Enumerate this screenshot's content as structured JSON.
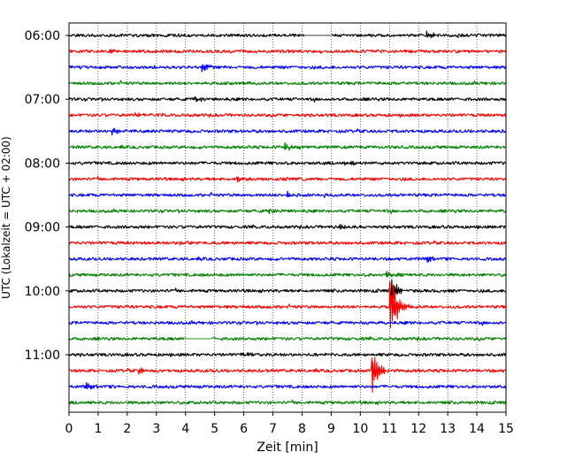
{
  "chart_data": {
    "type": "line",
    "title": "",
    "xlabel": "Zeit  [min]",
    "ylabel": "UTC (Lokalzeit = UTC + 02:00)",
    "xlim": [
      0,
      15
    ],
    "x_ticks": [
      0,
      1,
      2,
      3,
      4,
      5,
      6,
      7,
      8,
      9,
      10,
      11,
      12,
      13,
      14,
      15
    ],
    "x_tick_labels": [
      "0",
      "1",
      "2",
      "3",
      "4",
      "5",
      "6",
      "7",
      "8",
      "9",
      "10",
      "11",
      "12",
      "13",
      "14",
      "15"
    ],
    "y_tick_labels": [
      "06:00",
      "07:00",
      "08:00",
      "09:00",
      "10:00",
      "11:00"
    ],
    "y_tick_times": [
      "06:00",
      "07:00",
      "08:00",
      "09:00",
      "10:00",
      "11:00"
    ],
    "grid": "vertical dotted",
    "trace_interval_minutes": 15,
    "color_cycle": [
      "#000000",
      "#ff0000",
      "#0000ff",
      "#008000"
    ],
    "traces": [
      {
        "start": "06:00",
        "color": "#000000",
        "gap": [
          8.1,
          9.0
        ],
        "events": [
          {
            "minute": 12.3,
            "amplitude": 0.1
          }
        ]
      },
      {
        "start": "06:15",
        "color": "#ff0000",
        "events": [
          {
            "minute": 1.4,
            "amplitude": 0.1
          }
        ]
      },
      {
        "start": "06:30",
        "color": "#0000ff",
        "events": [
          {
            "minute": 4.6,
            "amplitude": 0.1
          }
        ]
      },
      {
        "start": "06:45",
        "color": "#008000",
        "events": []
      },
      {
        "start": "07:00",
        "color": "#000000",
        "events": [
          {
            "minute": 4.3,
            "amplitude": 0.09
          }
        ]
      },
      {
        "start": "07:15",
        "color": "#ff0000",
        "events": [
          {
            "minute": 2.3,
            "amplitude": 0.09
          }
        ]
      },
      {
        "start": "07:30",
        "color": "#0000ff",
        "events": [
          {
            "minute": 1.5,
            "amplitude": 0.1
          }
        ]
      },
      {
        "start": "07:45",
        "color": "#008000",
        "events": [
          {
            "minute": 7.4,
            "amplitude": 0.1
          }
        ]
      },
      {
        "start": "08:00",
        "color": "#000000",
        "events": [
          {
            "minute": 9.5,
            "amplitude": 0.1
          }
        ]
      },
      {
        "start": "08:15",
        "color": "#ff0000",
        "events": [
          {
            "minute": 5.8,
            "amplitude": 0.1
          }
        ]
      },
      {
        "start": "08:30",
        "color": "#0000ff",
        "events": [
          {
            "minute": 7.5,
            "amplitude": 0.1
          }
        ]
      },
      {
        "start": "08:45",
        "color": "#008000",
        "events": [
          {
            "minute": 6.8,
            "amplitude": 0.09
          }
        ]
      },
      {
        "start": "09:00",
        "color": "#000000",
        "events": [
          {
            "minute": 9.3,
            "amplitude": 0.08
          }
        ]
      },
      {
        "start": "09:15",
        "color": "#ff0000",
        "events": [
          {
            "minute": 3.8,
            "amplitude": 0.08
          }
        ]
      },
      {
        "start": "09:30",
        "color": "#0000ff",
        "events": [
          {
            "minute": 12.3,
            "amplitude": 0.1
          }
        ]
      },
      {
        "start": "09:45",
        "color": "#008000",
        "events": [
          {
            "minute": 10.9,
            "amplitude": 0.1
          }
        ]
      },
      {
        "start": "10:00",
        "color": "#000000",
        "events": [
          {
            "minute": 11.05,
            "amplitude": 0.45
          }
        ]
      },
      {
        "start": "10:15",
        "color": "#ff0000",
        "events": [
          {
            "minute": 11.05,
            "amplitude": 1.0
          }
        ]
      },
      {
        "start": "10:30",
        "color": "#0000ff",
        "events": []
      },
      {
        "start": "10:45",
        "color": "#008000",
        "gap": [
          4.0,
          4.9
        ],
        "events": []
      },
      {
        "start": "11:00",
        "color": "#000000",
        "events": [
          {
            "minute": 5.9,
            "amplitude": 0.1
          }
        ]
      },
      {
        "start": "11:15",
        "color": "#ff0000",
        "events": [
          {
            "minute": 10.4,
            "amplitude": 0.75
          },
          {
            "minute": 2.4,
            "amplitude": 0.15
          }
        ]
      },
      {
        "start": "11:30",
        "color": "#0000ff",
        "events": [
          {
            "minute": 0.6,
            "amplitude": 0.12
          }
        ]
      },
      {
        "start": "11:45",
        "color": "#008000",
        "events": []
      }
    ]
  }
}
